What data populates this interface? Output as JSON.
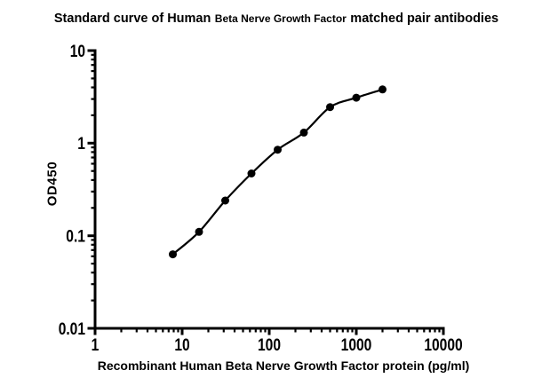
{
  "title_parts": {
    "part1": "Standard curve of Human",
    "part2": "Beta Nerve Growth Factor",
    "part3": "matched pair antibodies"
  },
  "chart_data": {
    "type": "scatter",
    "title": "Standard curve of Human Beta Nerve Growth Factor matched pair antibodies",
    "xlabel": "Recombinant Human Beta Nerve Growth Factor protein (pg/ml)",
    "ylabel": "OD450",
    "x_scale": "log10",
    "y_scale": "log10",
    "xlim": [
      1,
      10000
    ],
    "ylim": [
      0.01,
      10
    ],
    "x_ticks": {
      "values": [
        1,
        10,
        100,
        1000,
        10000
      ],
      "labels": [
        "1",
        "10",
        "100",
        "1000",
        "10000"
      ]
    },
    "y_ticks": {
      "values": [
        0.01,
        0.1,
        1,
        10
      ],
      "labels": [
        "0.01",
        "0.1",
        "1",
        "10"
      ]
    },
    "minor_ticks": "log-2-to-9-outward",
    "grid": false,
    "legend": "none",
    "curve_color": "#000000",
    "marker": "filled-circle",
    "series": [
      {
        "name": "standard-curve",
        "x": [
          7.8125,
          15.625,
          31.25,
          62.5,
          125,
          250,
          500,
          1000,
          2000
        ],
        "y": [
          0.063,
          0.11,
          0.24,
          0.47,
          0.85,
          1.3,
          2.45,
          3.1,
          3.8
        ]
      }
    ]
  }
}
